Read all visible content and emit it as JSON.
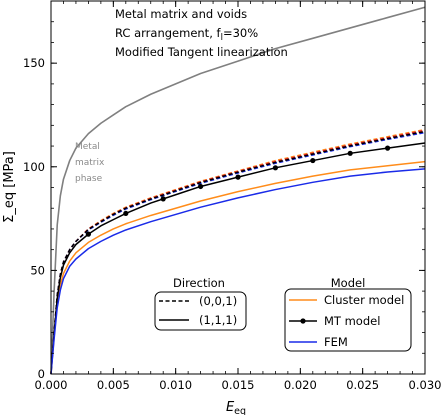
{
  "chart_data": {
    "type": "line",
    "annotations": [
      "Metal matrix and voids",
      "RC arrangement, f",
      "Modified Tangent linearization"
    ],
    "fraction": {
      "sub": "l",
      "value": "=30%"
    },
    "xlabel": {
      "base": "E",
      "sub": "eq"
    },
    "ylabel": "Σ_eq [MPa]",
    "xlim": [
      0,
      0.03
    ],
    "ylim": [
      0,
      180
    ],
    "x_ticks": [
      0,
      0.005,
      0.01,
      0.015,
      0.02,
      0.025,
      0.03
    ],
    "x_tick_labels": [
      "0.000",
      "0.005",
      "0.010",
      "0.015",
      "0.020",
      "0.025",
      "0.030"
    ],
    "y_ticks": [
      0,
      50,
      100,
      150
    ],
    "y_tick_labels": [
      "0",
      "50",
      "100",
      "150"
    ],
    "phase_label": [
      "Metal",
      "matrix",
      "phase"
    ],
    "x": [
      0,
      0.00025,
      0.0005,
      0.00075,
      0.001,
      0.0015,
      0.002,
      0.003,
      0.004,
      0.005,
      0.006,
      0.008,
      0.01,
      0.012,
      0.015,
      0.018,
      0.021,
      0.024,
      0.027,
      0.03
    ],
    "series": [
      {
        "key": "matrix",
        "color": "#808080",
        "dash": "solid",
        "markers": false,
        "values": [
          0,
          40,
          72,
          86,
          94,
          103,
          109,
          116,
          121,
          125,
          129,
          135,
          140,
          145,
          151,
          157,
          162,
          167,
          172,
          177
        ]
      },
      {
        "key": "cluster_001",
        "color": "#ff8c1a",
        "dash": "dashed",
        "markers": false,
        "values": [
          0,
          20,
          38,
          48,
          54,
          60,
          64,
          70,
          74,
          77.5,
          80.5,
          85,
          89,
          93,
          98,
          103,
          107,
          111,
          114.5,
          118
        ]
      },
      {
        "key": "mt_001",
        "color": "#d0102a",
        "dash": "dashed",
        "markers": false,
        "values": [
          0,
          20,
          38,
          48,
          54,
          60,
          64,
          70,
          73.7,
          77.2,
          80.2,
          84.7,
          88.7,
          92.7,
          97.7,
          102.5,
          106.5,
          110.5,
          114,
          117.5
        ]
      },
      {
        "key": "fem_001",
        "color": "#1a2be8",
        "dash": "dashed",
        "markers": false,
        "values": [
          0,
          20,
          38,
          48,
          54,
          60,
          64,
          69.5,
          73.2,
          76.6,
          79.6,
          84.1,
          88.1,
          92,
          97,
          101.7,
          105.7,
          109.7,
          113.2,
          116.5
        ]
      },
      {
        "key": "black_001",
        "color": "#000000",
        "dash": "dashed",
        "markers": false,
        "values": [
          0,
          20,
          38,
          48,
          54,
          60,
          64,
          69.8,
          73.5,
          77,
          80,
          84.4,
          88.4,
          92.4,
          97.4,
          102.1,
          106.1,
          110.1,
          113.6,
          117
        ]
      },
      {
        "key": "cluster_111",
        "color": "#ff8c1a",
        "dash": "solid",
        "markers": false,
        "values": [
          0,
          18,
          34,
          43,
          48.5,
          54.5,
          58.5,
          63.5,
          67,
          70,
          72.5,
          76.5,
          80,
          83.5,
          88,
          92,
          95.5,
          98.5,
          100.5,
          102.5
        ]
      },
      {
        "key": "mt_111",
        "color": "#000000",
        "dash": "solid",
        "markers": true,
        "marker_x": [
          0.003,
          0.006,
          0.009,
          0.012,
          0.015,
          0.018,
          0.021,
          0.024,
          0.027
        ],
        "values": [
          0,
          19.5,
          36.5,
          46.5,
          52.5,
          58.5,
          62.5,
          67.5,
          71.5,
          74.5,
          77.5,
          82.5,
          86.5,
          90.5,
          95,
          99.5,
          103,
          106.5,
          109,
          111.5
        ]
      },
      {
        "key": "fem_111",
        "color": "#1a2be8",
        "dash": "solid",
        "markers": false,
        "values": [
          0,
          17,
          32,
          40.5,
          46,
          52,
          55.5,
          60.5,
          64,
          67,
          69.5,
          73.5,
          77,
          80.5,
          85,
          89,
          92.5,
          95.5,
          97.5,
          99
        ]
      }
    ],
    "legend_direction": {
      "title": "Direction",
      "entries": [
        {
          "label": "(0,0,1)",
          "dash": "dashed"
        },
        {
          "label": "(1,1,1)",
          "dash": "solid"
        }
      ]
    },
    "legend_model": {
      "title": "Model",
      "entries": [
        {
          "label": "Cluster model",
          "color": "#ff8c1a",
          "marker": false
        },
        {
          "label": "MT model",
          "color": "#000000",
          "marker": true
        },
        {
          "label": "FEM",
          "color": "#1a2be8",
          "marker": false
        }
      ]
    },
    "grid": false
  }
}
